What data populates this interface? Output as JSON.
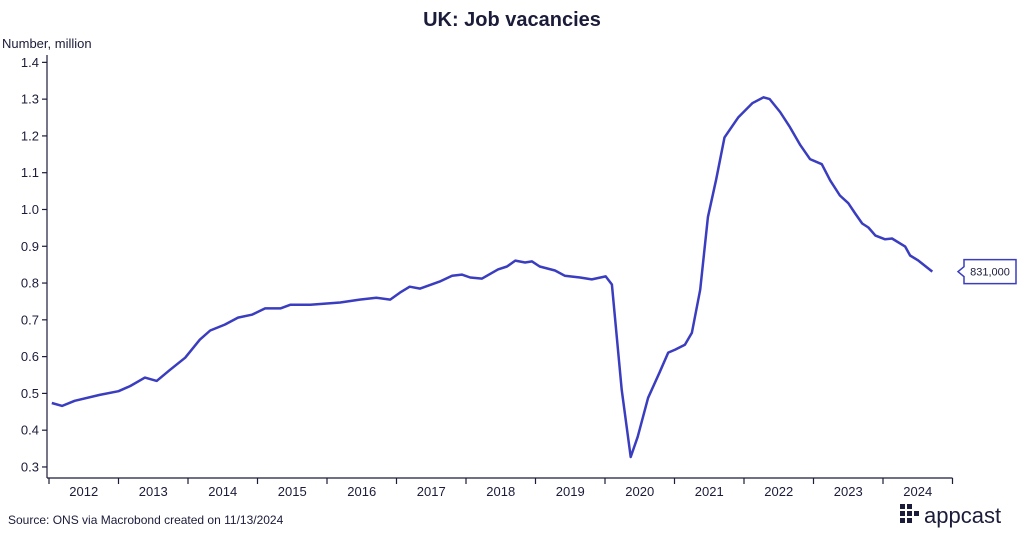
{
  "chart_data": {
    "type": "line",
    "title": "UK: Job vacancies",
    "y_axis_label": "Number, million",
    "source": "Source: ONS via Macrobond created on 11/13/2024",
    "brand": "appcast",
    "xlim": [
      2012,
      2025
    ],
    "xticks": [
      2012,
      2013,
      2014,
      2015,
      2016,
      2017,
      2018,
      2019,
      2020,
      2021,
      2022,
      2023,
      2024
    ],
    "ylim": [
      0.27,
      1.42
    ],
    "yticks": [
      0.3,
      0.4,
      0.5,
      0.6,
      0.7,
      0.8,
      0.9,
      {
        "value": 1,
        "label": "1.0"
      },
      1.1,
      1.2,
      1.3,
      1.4
    ],
    "series": [
      {
        "name": "Job vacancies",
        "color": "#3a3dbf",
        "x": [
          2012.04,
          2012.19,
          2012.37,
          2012.73,
          2013.0,
          2013.17,
          2013.38,
          2013.55,
          2013.74,
          2013.96,
          2014.17,
          2014.32,
          2014.53,
          2014.72,
          2014.92,
          2015.11,
          2015.33,
          2015.47,
          2015.76,
          2016.19,
          2016.47,
          2016.71,
          2016.91,
          2017.05,
          2017.19,
          2017.34,
          2017.62,
          2017.8,
          2017.94,
          2018.06,
          2018.23,
          2018.46,
          2018.59,
          2018.71,
          2018.85,
          2018.95,
          2019.06,
          2019.28,
          2019.42,
          2019.64,
          2019.81,
          2020.01,
          2020.1,
          2020.24,
          2020.37,
          2020.47,
          2020.62,
          2020.79,
          2020.91,
          2021.01,
          2021.15,
          2021.25,
          2021.37,
          2021.48,
          2021.6,
          2021.72,
          2021.92,
          2022.12,
          2022.28,
          2022.37,
          2022.52,
          2022.66,
          2022.81,
          2022.95,
          2023.12,
          2023.24,
          2023.38,
          2023.5,
          2023.6,
          2023.7,
          2023.79,
          2023.89,
          2024.03,
          2024.13,
          2024.32,
          2024.39,
          2024.51,
          2024.71
        ],
        "values": [
          0.474,
          0.466,
          0.48,
          0.496,
          0.506,
          0.52,
          0.543,
          0.534,
          0.564,
          0.597,
          0.646,
          0.671,
          0.687,
          0.706,
          0.714,
          0.731,
          0.731,
          0.741,
          0.741,
          0.747,
          0.755,
          0.76,
          0.755,
          0.774,
          0.79,
          0.785,
          0.804,
          0.82,
          0.823,
          0.815,
          0.812,
          0.837,
          0.845,
          0.861,
          0.856,
          0.859,
          0.845,
          0.834,
          0.82,
          0.815,
          0.81,
          0.818,
          0.796,
          0.51,
          0.327,
          0.382,
          0.488,
          0.559,
          0.611,
          0.619,
          0.632,
          0.665,
          0.782,
          0.979,
          1.082,
          1.196,
          1.251,
          1.289,
          1.305,
          1.3,
          1.265,
          1.224,
          1.175,
          1.137,
          1.123,
          1.079,
          1.038,
          1.017,
          0.989,
          0.962,
          0.951,
          0.929,
          0.919,
          0.921,
          0.899,
          0.875,
          0.861,
          0.831
        ],
        "value_labels": [
          null,
          null,
          null,
          null,
          null,
          null,
          null,
          null,
          null,
          null,
          null,
          null,
          null,
          null,
          null,
          null,
          null,
          null,
          null,
          null,
          null,
          null,
          null,
          null,
          null,
          null,
          null,
          null,
          null,
          null,
          null,
          null,
          null,
          null,
          null,
          null,
          null,
          null,
          null,
          null,
          null,
          null,
          null,
          null,
          null,
          null,
          null,
          null,
          null,
          null,
          null,
          null,
          null,
          null,
          null,
          null,
          null,
          null,
          null,
          null,
          null,
          null,
          null,
          null,
          null,
          null,
          null,
          null,
          null,
          null,
          null,
          null,
          null,
          null,
          null,
          null,
          null,
          "831,000"
        ]
      }
    ]
  }
}
